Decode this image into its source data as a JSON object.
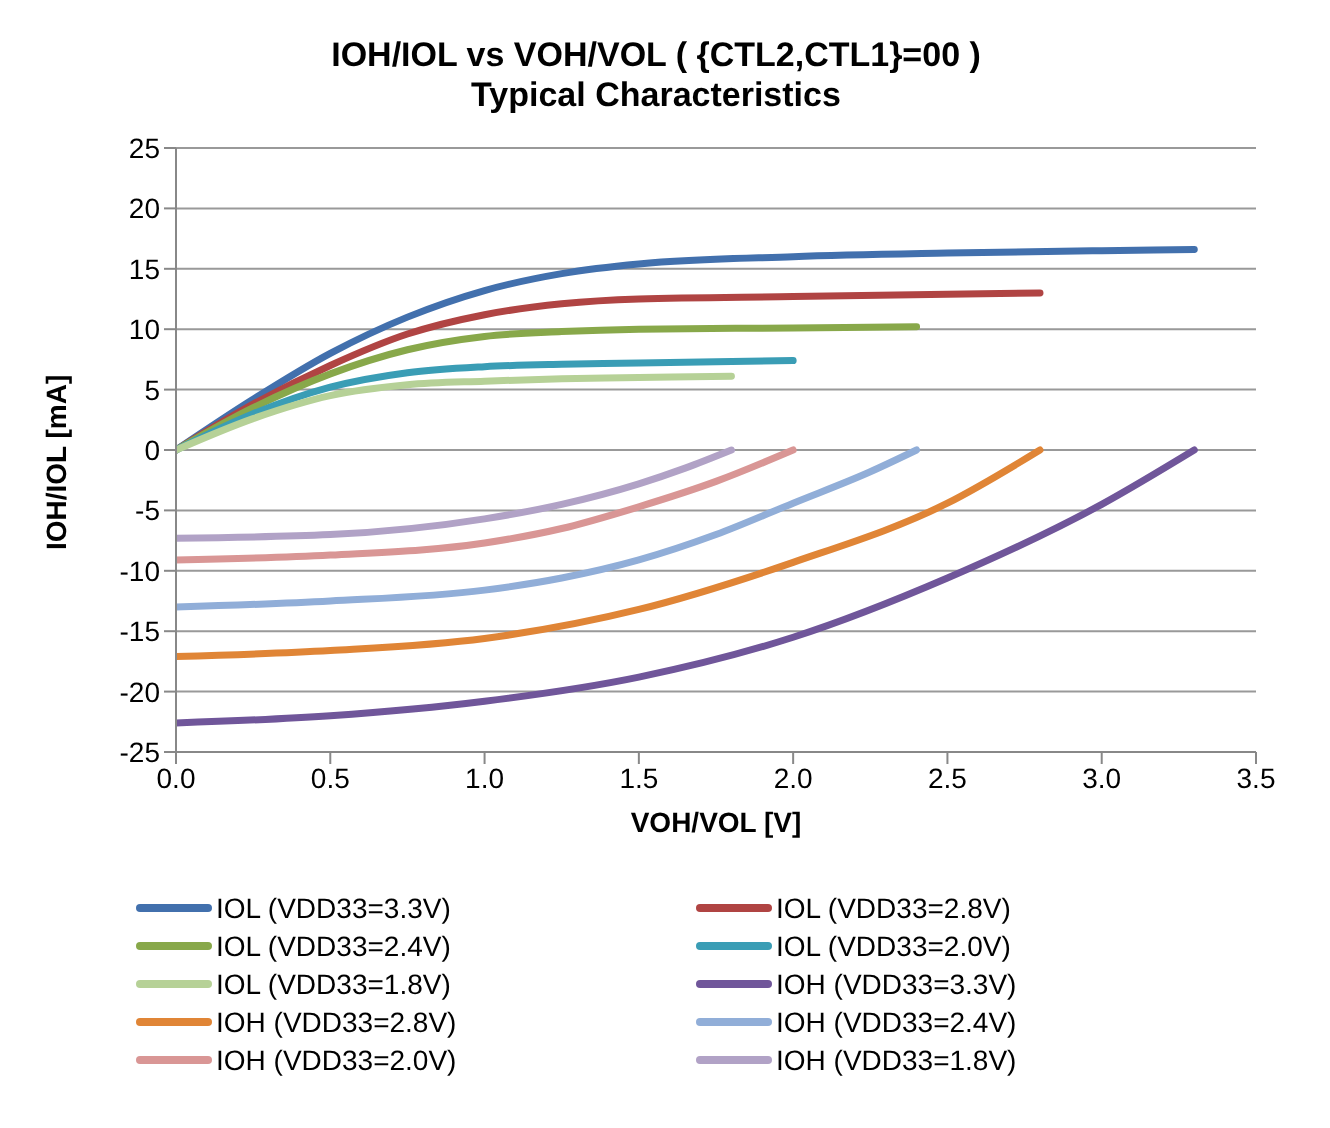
{
  "chart_data": {
    "type": "line",
    "title": "IOH/IOL vs VOH/VOL  ( {CTL2,CTL1}=00 )",
    "subtitle": "Typical  Characteristics",
    "xlabel": "VOH/VOL [V]",
    "ylabel": "IOH/IOL [mA]",
    "xlim": [
      0,
      3.5
    ],
    "xticks": [
      {
        "value": 0,
        "label": "0.0"
      },
      0.5,
      {
        "value": 1,
        "label": "1.0"
      },
      1.5,
      {
        "value": 2,
        "label": "2.0"
      },
      2.5,
      {
        "value": 3,
        "label": "3.0"
      },
      3.5
    ],
    "ylim": [
      -25,
      25
    ],
    "yticks": [
      -25,
      -20,
      -15,
      -10,
      -5,
      0,
      5,
      10,
      15,
      20,
      25
    ],
    "grid": "y",
    "legend": "bottom",
    "marker": "none",
    "line_style": "solid",
    "series": [
      {
        "name": "IOL (VDD33=3.3V)",
        "color": "#4270ad",
        "x": [
          0,
          0.25,
          0.5,
          0.75,
          1,
          1.25,
          1.5,
          2,
          2.5,
          3,
          3.3
        ],
        "values": [
          0,
          4.2,
          8,
          11,
          13.2,
          14.6,
          15.4,
          16,
          16.3,
          16.5,
          16.6
        ]
      },
      {
        "name": "IOL (VDD33=2.8V)",
        "color": "#b04443",
        "x": [
          0,
          0.25,
          0.5,
          0.75,
          1,
          1.25,
          1.5,
          2,
          2.5,
          2.8
        ],
        "values": [
          0,
          3.8,
          7,
          9.6,
          11.2,
          12.1,
          12.5,
          12.7,
          12.9,
          13
        ]
      },
      {
        "name": "IOL (VDD33=2.4V)",
        "color": "#88a84a",
        "x": [
          0,
          0.25,
          0.5,
          0.75,
          1,
          1.25,
          1.5,
          2,
          2.4
        ],
        "values": [
          0,
          3.5,
          6.3,
          8.3,
          9.4,
          9.8,
          10,
          10.1,
          10.2
        ]
      },
      {
        "name": "IOL (VDD33=2.0V)",
        "color": "#3a9db5",
        "x": [
          0,
          0.25,
          0.5,
          0.75,
          1,
          1.25,
          1.5,
          2
        ],
        "values": [
          0,
          3,
          5.2,
          6.4,
          6.9,
          7.1,
          7.2,
          7.4
        ]
      },
      {
        "name": "IOL (VDD33=1.8V)",
        "color": "#b6d197",
        "x": [
          0,
          0.25,
          0.5,
          0.75,
          1,
          1.25,
          1.5,
          1.8
        ],
        "values": [
          0,
          2.6,
          4.5,
          5.4,
          5.7,
          5.9,
          6,
          6.1
        ]
      },
      {
        "name": "IOH (VDD33=3.3V)",
        "color": "#70569a",
        "x": [
          0,
          0.5,
          1,
          1.5,
          2,
          2.5,
          3,
          3.3
        ],
        "values": [
          -22.6,
          -22,
          -20.8,
          -18.8,
          -15.5,
          -10.6,
          -4.5,
          0
        ]
      },
      {
        "name": "IOH (VDD33=2.8V)",
        "color": "#e08536",
        "x": [
          0,
          0.5,
          1,
          1.5,
          2,
          2.5,
          2.8
        ],
        "values": [
          -17.1,
          -16.6,
          -15.6,
          -13.2,
          -9.3,
          -4.4,
          0
        ]
      },
      {
        "name": "IOH (VDD33=2.4V)",
        "color": "#91aed8",
        "x": [
          0,
          0.5,
          1,
          1.25,
          1.5,
          1.75,
          2,
          2.25,
          2.4
        ],
        "values": [
          -13,
          -12.5,
          -11.6,
          -10.6,
          -9.1,
          -7,
          -4.4,
          -1.8,
          0
        ]
      },
      {
        "name": "IOH (VDD33=2.0V)",
        "color": "#d99695",
        "x": [
          0,
          0.5,
          1,
          1.25,
          1.5,
          1.75,
          2
        ],
        "values": [
          -9.1,
          -8.7,
          -7.7,
          -6.5,
          -4.7,
          -2.6,
          0
        ]
      },
      {
        "name": "IOH (VDD33=1.8V)",
        "color": "#b1a2c6",
        "x": [
          0,
          0.5,
          1,
          1.25,
          1.5,
          1.65,
          1.8
        ],
        "values": [
          -7.3,
          -7,
          -5.7,
          -4.5,
          -2.8,
          -1.5,
          0
        ]
      }
    ]
  }
}
